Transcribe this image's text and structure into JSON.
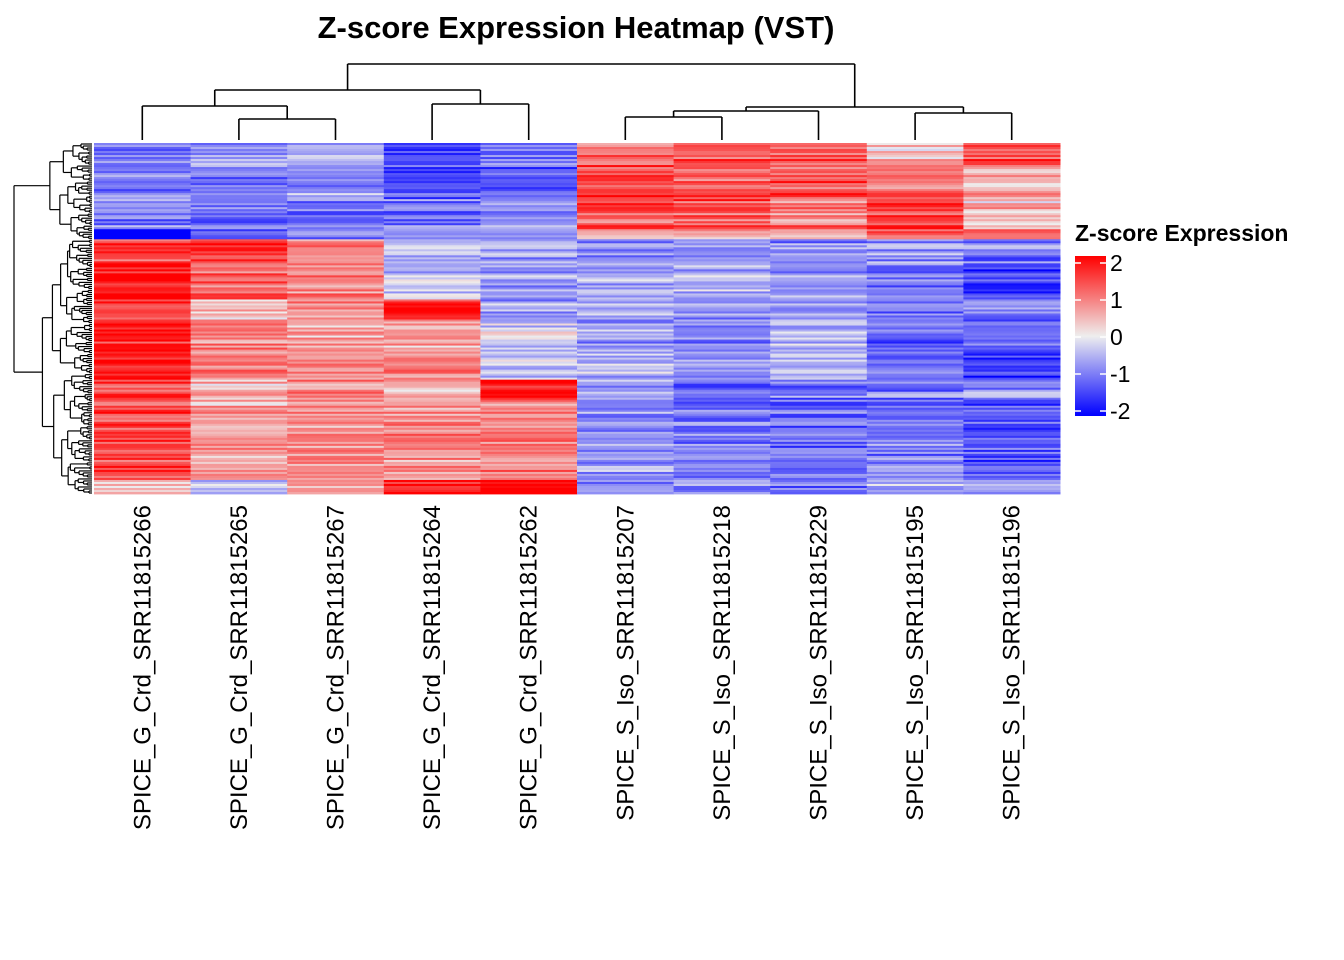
{
  "chart_data": {
    "type": "heatmap",
    "title": "Z-score Expression Heatmap (VST)",
    "columns": [
      "SPICE_G_Crd_SRR11815266",
      "SPICE_G_Crd_SRR11815265",
      "SPICE_G_Crd_SRR11815267",
      "SPICE_G_Crd_SRR11815264",
      "SPICE_G_Crd_SRR11815262",
      "SPICE_S_Iso_SRR11815207",
      "SPICE_S_Iso_SRR11815218",
      "SPICE_S_Iso_SRR11815229",
      "SPICE_S_Iso_SRR11815195",
      "SPICE_S_Iso_SRR11815196"
    ],
    "column_dendrogram": "(((SPICE_G_Crd_SRR11815266,(SPICE_G_Crd_SRR11815265,SPICE_G_Crd_SRR11815267)),(SPICE_G_Crd_SRR11815264,SPICE_G_Crd_SRR11815262)),(((SPICE_S_Iso_SRR11815207,SPICE_S_Iso_SRR11815218),SPICE_S_Iso_SRR11815229),(SPICE_S_Iso_SRR11815195,SPICE_S_Iso_SRR11815196)))",
    "row_dendrogram": true,
    "row_bands_note_free": true,
    "row_bands": [
      {
        "rows": 11,
        "mean_z": [
          -1.0,
          -0.7,
          -0.4,
          -1.5,
          -1.0,
          1.0,
          1.2,
          1.2,
          0.3,
          1.3
        ]
      },
      {
        "rows": 17,
        "mean_z": [
          -1.0,
          -1.0,
          -0.8,
          -1.5,
          -1.1,
          1.5,
          1.3,
          1.3,
          1.1,
          0.6
        ]
      },
      {
        "rows": 15,
        "mean_z": [
          -0.9,
          -1.1,
          -0.9,
          -1.0,
          -0.8,
          1.3,
          1.3,
          1.0,
          1.5,
          0.5
        ]
      },
      {
        "rows": 5,
        "mean_z": [
          -2.0,
          -1.0,
          -0.8,
          -0.8,
          -0.6,
          0.6,
          0.8,
          0.5,
          1.4,
          1.5
        ]
      },
      {
        "rows": 12,
        "mean_z": [
          1.4,
          1.6,
          0.9,
          -0.4,
          -0.6,
          -0.9,
          -0.8,
          -0.8,
          -0.7,
          -1.0
        ]
      },
      {
        "rows": 18,
        "mean_z": [
          1.9,
          1.2,
          0.8,
          -0.4,
          -0.7,
          -0.6,
          -0.6,
          -0.8,
          -1.0,
          -1.5
        ]
      },
      {
        "rows": 10,
        "mean_z": [
          1.5,
          0.5,
          0.8,
          1.7,
          -0.6,
          -0.6,
          -0.7,
          -0.8,
          -1.0,
          -0.8
        ]
      },
      {
        "rows": 15,
        "mean_z": [
          1.7,
          0.8,
          0.5,
          0.6,
          -0.3,
          -0.8,
          -0.8,
          -0.6,
          -1.1,
          -1.2
        ]
      },
      {
        "rows": 15,
        "mean_z": [
          1.8,
          0.8,
          0.7,
          0.9,
          -0.4,
          -0.5,
          -0.8,
          -0.4,
          -1.2,
          -1.5
        ]
      },
      {
        "rows": 10,
        "mean_z": [
          1.3,
          0.4,
          0.8,
          0.5,
          2.0,
          -0.7,
          -0.9,
          -1.0,
          -1.0,
          -0.8
        ]
      },
      {
        "rows": 40,
        "mean_z": [
          1.4,
          0.6,
          0.8,
          0.8,
          0.9,
          -0.8,
          -1.0,
          -1.1,
          -0.9,
          -1.3
        ]
      },
      {
        "rows": 7,
        "mean_z": [
          0.5,
          -0.3,
          0.8,
          2.0,
          2.0,
          -0.8,
          -0.7,
          -0.9,
          -0.5,
          -0.7
        ]
      }
    ],
    "legend": {
      "title": "Z-score Expression",
      "ticks": [
        "2",
        "1",
        "0",
        "-1",
        "-2"
      ],
      "range": [
        -2,
        2
      ],
      "colors": {
        "low": "#0000FF",
        "mid": "#EEEEEE",
        "high": "#FF0000"
      }
    }
  }
}
